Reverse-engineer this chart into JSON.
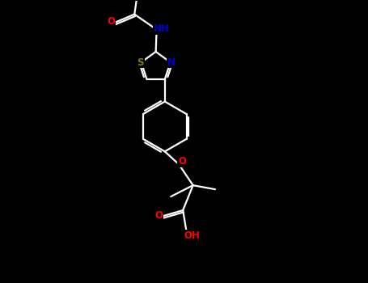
{
  "background": "#000000",
  "bond_color": "#ffffff",
  "N_color": "#0000cd",
  "O_color": "#ff0000",
  "S_color": "#808000",
  "bond_width": 1.6,
  "font_size": 8.5,
  "fig_width": 4.55,
  "fig_height": 3.5,
  "dpi": 100,
  "xlim": [
    0,
    9
  ],
  "ylim": [
    0,
    7
  ]
}
